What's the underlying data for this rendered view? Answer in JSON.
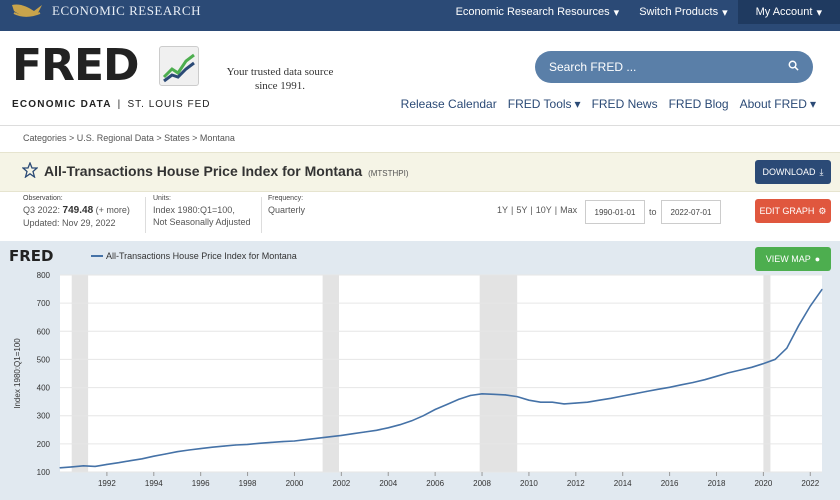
{
  "topbar": {
    "brand": "ECONOMIC RESEARCH",
    "resources": "Economic Research Resources",
    "switch": "Switch Products",
    "account": "My Account"
  },
  "header": {
    "logo": "FRED",
    "logo_sub_a": "ECONOMIC DATA",
    "logo_sub_b": "ST. LOUIS FED",
    "tagline_1": "Your trusted data source",
    "tagline_2": "since 1991.",
    "search_placeholder": "Search FRED ...",
    "nav": [
      "Release Calendar",
      "FRED Tools",
      "FRED News",
      "FRED Blog",
      "About FRED"
    ]
  },
  "breadcrumbs": "Categories > U.S. Regional Data > States > Montana",
  "series": {
    "title": "All-Transactions House Price Index for Montana",
    "id": "(MTSTHPI)",
    "download": "DOWNLOAD",
    "edit": "EDIT GRAPH",
    "view_map": "VIEW MAP"
  },
  "meta": {
    "obs_label": "Observation:",
    "obs_period": "Q3 2022:",
    "obs_value": "749.48",
    "obs_more": "(+ more)",
    "updated": "Updated: Nov 29, 2022",
    "units_label": "Units:",
    "units_1": "Index 1980:Q1=100,",
    "units_2": "Not Seasonally Adjusted",
    "freq_label": "Frequency:",
    "freq": "Quarterly"
  },
  "range_links": [
    "1Y",
    "5Y",
    "10Y",
    "Max"
  ],
  "date_from": "1990-01-01",
  "date_to": "2022-07-01",
  "to_label": "to",
  "colors": {
    "topbar": "#2b4a76",
    "line": "#4572a7",
    "recession": "#e3e3e3",
    "download": "#2b4a76",
    "edit": "#e0573e",
    "map": "#4dae4f"
  },
  "chart_data": {
    "type": "line",
    "logo": "FRED",
    "title": "",
    "series": [
      {
        "name": "All-Transactions House Price Index for Montana"
      }
    ],
    "ylabel": "Index 1980:Q1=100",
    "ylim": [
      100,
      800
    ],
    "yticks": [
      100,
      200,
      300,
      400,
      500,
      600,
      700,
      800
    ],
    "xlim": [
      1990.0,
      2022.5
    ],
    "xticks": [
      "1992",
      "1994",
      "1996",
      "1998",
      "2000",
      "2002",
      "2004",
      "2006",
      "2008",
      "2010",
      "2012",
      "2014",
      "2016",
      "2018",
      "2020",
      "2022"
    ],
    "recessions": [
      [
        1990.5,
        1991.2
      ],
      [
        2001.2,
        2001.9
      ],
      [
        2007.9,
        2009.5
      ],
      [
        2020.0,
        2020.3
      ]
    ],
    "x": [
      1990.0,
      1990.5,
      1991.0,
      1991.5,
      1992.0,
      1992.5,
      1993.0,
      1993.5,
      1994.0,
      1994.5,
      1995.0,
      1995.5,
      1996.0,
      1996.5,
      1997.0,
      1997.5,
      1998.0,
      1998.5,
      1999.0,
      1999.5,
      2000.0,
      2000.5,
      2001.0,
      2001.5,
      2002.0,
      2002.5,
      2003.0,
      2003.5,
      2004.0,
      2004.5,
      2005.0,
      2005.5,
      2006.0,
      2006.5,
      2007.0,
      2007.5,
      2008.0,
      2008.5,
      2009.0,
      2009.5,
      2010.0,
      2010.5,
      2011.0,
      2011.5,
      2012.0,
      2012.5,
      2013.0,
      2013.5,
      2014.0,
      2014.5,
      2015.0,
      2015.5,
      2016.0,
      2016.5,
      2017.0,
      2017.5,
      2018.0,
      2018.5,
      2019.0,
      2019.5,
      2020.0,
      2020.5,
      2021.0,
      2021.5,
      2022.0,
      2022.5
    ],
    "values": [
      115,
      118,
      122,
      120,
      127,
      133,
      140,
      147,
      156,
      164,
      172,
      178,
      183,
      188,
      192,
      196,
      198,
      202,
      205,
      208,
      210,
      215,
      220,
      225,
      230,
      236,
      242,
      248,
      257,
      268,
      282,
      300,
      322,
      340,
      358,
      372,
      378,
      376,
      374,
      368,
      355,
      348,
      348,
      342,
      345,
      348,
      355,
      362,
      370,
      378,
      386,
      394,
      401,
      410,
      418,
      428,
      440,
      452,
      462,
      472,
      485,
      500,
      540,
      620,
      690,
      749
    ]
  }
}
